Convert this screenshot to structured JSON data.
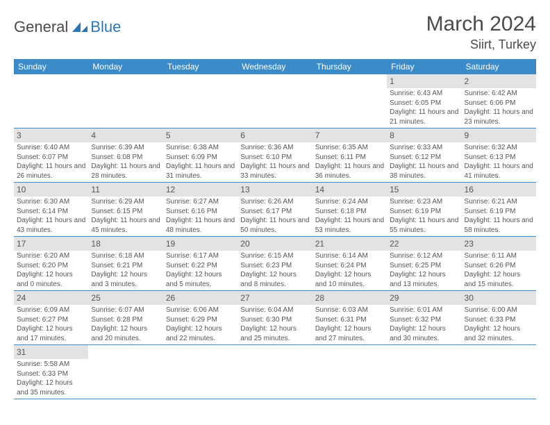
{
  "logo": {
    "text1": "General",
    "text2": "Blue"
  },
  "title": "March 2024",
  "location": "Siirt, Turkey",
  "colors": {
    "header_bg": "#3b8bc8",
    "header_text": "#ffffff",
    "daynum_bg": "#e3e3e3",
    "border": "#3b8bc8",
    "text": "#4a4a4a",
    "accent": "#2e75b6"
  },
  "day_headers": [
    "Sunday",
    "Monday",
    "Tuesday",
    "Wednesday",
    "Thursday",
    "Friday",
    "Saturday"
  ],
  "weeks": [
    [
      null,
      null,
      null,
      null,
      null,
      {
        "n": "1",
        "sr": "6:43 AM",
        "ss": "6:05 PM",
        "dl": "11 hours and 21 minutes."
      },
      {
        "n": "2",
        "sr": "6:42 AM",
        "ss": "6:06 PM",
        "dl": "11 hours and 23 minutes."
      }
    ],
    [
      {
        "n": "3",
        "sr": "6:40 AM",
        "ss": "6:07 PM",
        "dl": "11 hours and 26 minutes."
      },
      {
        "n": "4",
        "sr": "6:39 AM",
        "ss": "6:08 PM",
        "dl": "11 hours and 28 minutes."
      },
      {
        "n": "5",
        "sr": "6:38 AM",
        "ss": "6:09 PM",
        "dl": "11 hours and 31 minutes."
      },
      {
        "n": "6",
        "sr": "6:36 AM",
        "ss": "6:10 PM",
        "dl": "11 hours and 33 minutes."
      },
      {
        "n": "7",
        "sr": "6:35 AM",
        "ss": "6:11 PM",
        "dl": "11 hours and 36 minutes."
      },
      {
        "n": "8",
        "sr": "6:33 AM",
        "ss": "6:12 PM",
        "dl": "11 hours and 38 minutes."
      },
      {
        "n": "9",
        "sr": "6:32 AM",
        "ss": "6:13 PM",
        "dl": "11 hours and 41 minutes."
      }
    ],
    [
      {
        "n": "10",
        "sr": "6:30 AM",
        "ss": "6:14 PM",
        "dl": "11 hours and 43 minutes."
      },
      {
        "n": "11",
        "sr": "6:29 AM",
        "ss": "6:15 PM",
        "dl": "11 hours and 45 minutes."
      },
      {
        "n": "12",
        "sr": "6:27 AM",
        "ss": "6:16 PM",
        "dl": "11 hours and 48 minutes."
      },
      {
        "n": "13",
        "sr": "6:26 AM",
        "ss": "6:17 PM",
        "dl": "11 hours and 50 minutes."
      },
      {
        "n": "14",
        "sr": "6:24 AM",
        "ss": "6:18 PM",
        "dl": "11 hours and 53 minutes."
      },
      {
        "n": "15",
        "sr": "6:23 AM",
        "ss": "6:19 PM",
        "dl": "11 hours and 55 minutes."
      },
      {
        "n": "16",
        "sr": "6:21 AM",
        "ss": "6:19 PM",
        "dl": "11 hours and 58 minutes."
      }
    ],
    [
      {
        "n": "17",
        "sr": "6:20 AM",
        "ss": "6:20 PM",
        "dl": "12 hours and 0 minutes."
      },
      {
        "n": "18",
        "sr": "6:18 AM",
        "ss": "6:21 PM",
        "dl": "12 hours and 3 minutes."
      },
      {
        "n": "19",
        "sr": "6:17 AM",
        "ss": "6:22 PM",
        "dl": "12 hours and 5 minutes."
      },
      {
        "n": "20",
        "sr": "6:15 AM",
        "ss": "6:23 PM",
        "dl": "12 hours and 8 minutes."
      },
      {
        "n": "21",
        "sr": "6:14 AM",
        "ss": "6:24 PM",
        "dl": "12 hours and 10 minutes."
      },
      {
        "n": "22",
        "sr": "6:12 AM",
        "ss": "6:25 PM",
        "dl": "12 hours and 13 minutes."
      },
      {
        "n": "23",
        "sr": "6:11 AM",
        "ss": "6:26 PM",
        "dl": "12 hours and 15 minutes."
      }
    ],
    [
      {
        "n": "24",
        "sr": "6:09 AM",
        "ss": "6:27 PM",
        "dl": "12 hours and 17 minutes."
      },
      {
        "n": "25",
        "sr": "6:07 AM",
        "ss": "6:28 PM",
        "dl": "12 hours and 20 minutes."
      },
      {
        "n": "26",
        "sr": "6:06 AM",
        "ss": "6:29 PM",
        "dl": "12 hours and 22 minutes."
      },
      {
        "n": "27",
        "sr": "6:04 AM",
        "ss": "6:30 PM",
        "dl": "12 hours and 25 minutes."
      },
      {
        "n": "28",
        "sr": "6:03 AM",
        "ss": "6:31 PM",
        "dl": "12 hours and 27 minutes."
      },
      {
        "n": "29",
        "sr": "6:01 AM",
        "ss": "6:32 PM",
        "dl": "12 hours and 30 minutes."
      },
      {
        "n": "30",
        "sr": "6:00 AM",
        "ss": "6:33 PM",
        "dl": "12 hours and 32 minutes."
      }
    ],
    [
      {
        "n": "31",
        "sr": "5:58 AM",
        "ss": "6:33 PM",
        "dl": "12 hours and 35 minutes."
      },
      null,
      null,
      null,
      null,
      null,
      null
    ]
  ],
  "labels": {
    "sunrise": "Sunrise:",
    "sunset": "Sunset:",
    "daylight": "Daylight:"
  }
}
